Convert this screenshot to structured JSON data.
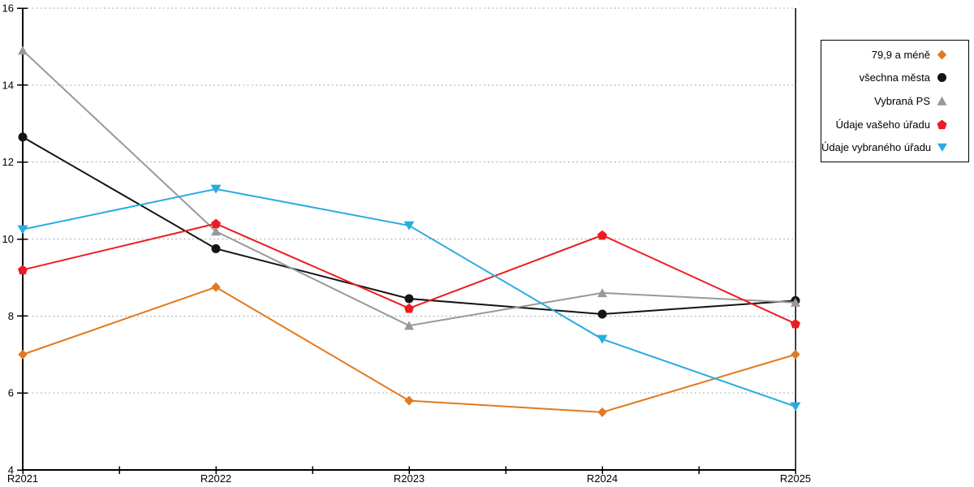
{
  "chart_data": {
    "type": "line",
    "title": "",
    "xlabel": "",
    "ylabel": "",
    "categories": [
      "R2021",
      "R2022",
      "R2023",
      "R2024",
      "R2025"
    ],
    "series": [
      {
        "name": "79,9 a méně",
        "color": "#E2791F",
        "marker": "diamond",
        "values": [
          7.0,
          8.75,
          5.8,
          5.5,
          7.0
        ]
      },
      {
        "name": "všechna města",
        "color": "#141414",
        "marker": "circle",
        "values": [
          12.65,
          9.75,
          8.45,
          8.05,
          8.4
        ]
      },
      {
        "name": "Vybraná PS",
        "color": "#999999",
        "marker": "triangle-up",
        "values": [
          14.9,
          10.2,
          7.75,
          8.6,
          8.35
        ]
      },
      {
        "name": "Údaje vašeho úřadu",
        "color": "#EC1C24",
        "marker": "pentagon",
        "values": [
          9.2,
          10.4,
          8.2,
          10.1,
          7.8
        ]
      },
      {
        "name": "Údaje vybraného úřadu",
        "color": "#29ABE2",
        "marker": "triangle-down",
        "values": [
          10.25,
          11.3,
          10.35,
          7.4,
          5.65
        ]
      }
    ],
    "ylim": [
      4,
      16
    ],
    "yticks": [
      4,
      6,
      8,
      10,
      12,
      14,
      16
    ],
    "grid": "horizontal-dotted",
    "gridline_color": "#ABABAB",
    "axis_color": "#000000",
    "legend_position": "outside-right"
  }
}
